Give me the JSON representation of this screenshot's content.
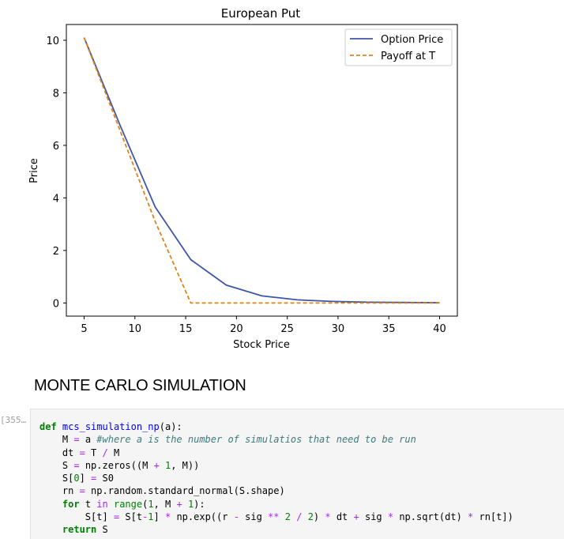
{
  "chart_data": {
    "type": "line",
    "title": "European Put",
    "xlabel": "Stock Price",
    "ylabel": "Price",
    "xlim": [
      3.25,
      41.75
    ],
    "ylim": [
      -0.5,
      10.6
    ],
    "xticks": [
      5,
      10,
      15,
      20,
      25,
      30,
      35,
      40
    ],
    "yticks": [
      0,
      2,
      4,
      6,
      8,
      10
    ],
    "legend_position": "top-right",
    "grid": false,
    "series": [
      {
        "name": "Option Price",
        "color": "#4055a8",
        "style": "solid",
        "x": [
          5,
          8.5,
          12,
          15.5,
          19,
          22.5,
          26,
          29.5,
          33,
          36.5,
          40
        ],
        "y": [
          10.1,
          6.8,
          3.65,
          1.65,
          0.68,
          0.27,
          0.12,
          0.06,
          0.03,
          0.02,
          0.01
        ]
      },
      {
        "name": "Payoff at T",
        "color": "#e08214",
        "style": "dashed",
        "x": [
          5,
          8.5,
          12,
          15.5,
          19,
          22.5,
          26,
          29.5,
          33,
          36.5,
          40
        ],
        "y": [
          10.1,
          6.6,
          3.1,
          0,
          0,
          0,
          0,
          0,
          0,
          0,
          0
        ]
      }
    ]
  },
  "section": {
    "heading": "MONTE CARLO SIMULATION"
  },
  "code_cell": {
    "prompt": "[355…",
    "lines": [
      "def mcs_simulation_np(a):",
      "    M = a #where a is the number of simulatios that need to be run",
      "    dt = T / M",
      "    S = np.zeros((M + 1, M))",
      "    S[0] = S0",
      "    rn = np.random.standard_normal(S.shape)",
      "    for t in range(1, M + 1):",
      "        S[t] = S[t-1] * np.exp((r - sig ** 2 / 2) * dt + sig * np.sqrt(dt) * rn[t])",
      "    return S"
    ]
  }
}
